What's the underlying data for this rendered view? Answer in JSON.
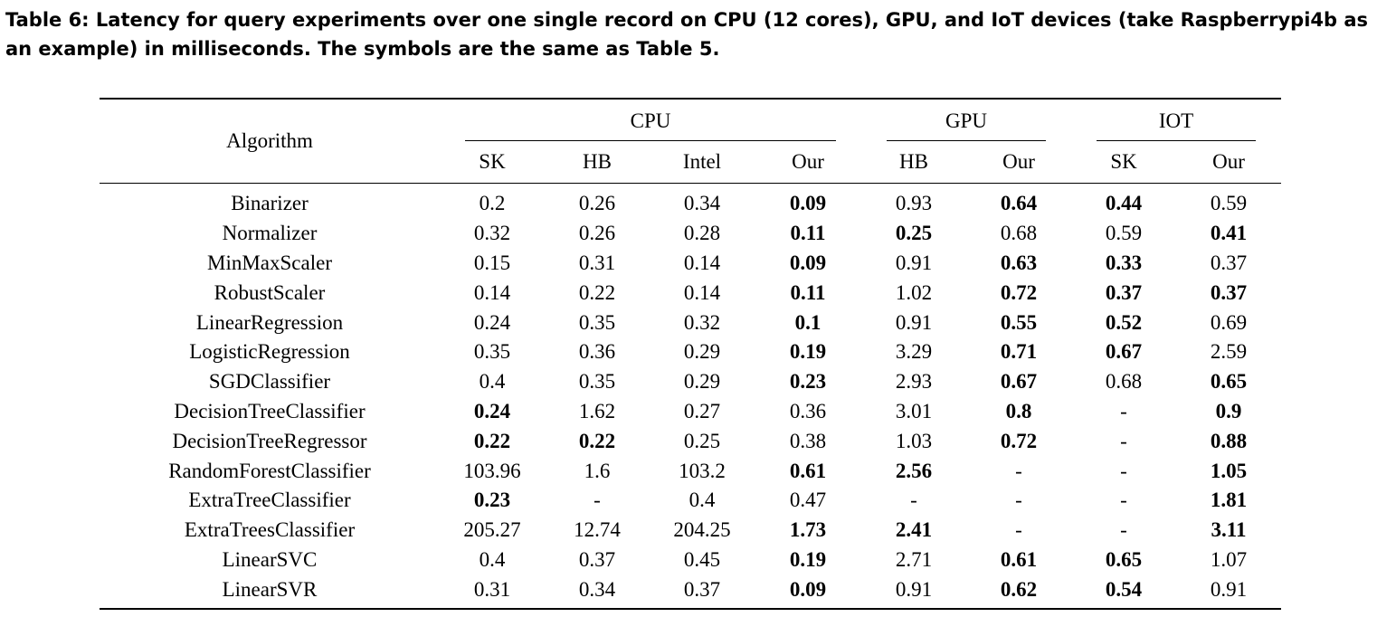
{
  "caption": "Table 6: Latency for query experiments over one single record on CPU (12 cores), GPU, and IoT devices (take Raspberrypi4b as an example) in milliseconds. The symbols are the same as Table 5.",
  "header": {
    "algorithm": "Algorithm",
    "groups": [
      "CPU",
      "GPU",
      "IOT"
    ],
    "columns": [
      "SK",
      "HB",
      "Intel",
      "Our",
      "HB",
      "Our",
      "SK",
      "Our"
    ]
  },
  "rows": [
    {
      "name": "Binarizer",
      "values": [
        "0.2",
        "0.26",
        "0.34",
        "0.09",
        "0.93",
        "0.64",
        "0.44",
        "0.59"
      ],
      "bold": [
        3,
        5,
        6
      ]
    },
    {
      "name": "Normalizer",
      "values": [
        "0.32",
        "0.26",
        "0.28",
        "0.11",
        "0.25",
        "0.68",
        "0.59",
        "0.41"
      ],
      "bold": [
        3,
        4,
        7
      ]
    },
    {
      "name": "MinMaxScaler",
      "values": [
        "0.15",
        "0.31",
        "0.14",
        "0.09",
        "0.91",
        "0.63",
        "0.33",
        "0.37"
      ],
      "bold": [
        3,
        5,
        6
      ]
    },
    {
      "name": "RobustScaler",
      "values": [
        "0.14",
        "0.22",
        "0.14",
        "0.11",
        "1.02",
        "0.72",
        "0.37",
        "0.37"
      ],
      "bold": [
        3,
        5,
        6,
        7
      ]
    },
    {
      "name": "LinearRegression",
      "values": [
        "0.24",
        "0.35",
        "0.32",
        "0.1",
        "0.91",
        "0.55",
        "0.52",
        "0.69"
      ],
      "bold": [
        3,
        5,
        6
      ]
    },
    {
      "name": "LogisticRegression",
      "values": [
        "0.35",
        "0.36",
        "0.29",
        "0.19",
        "3.29",
        "0.71",
        "0.67",
        "2.59"
      ],
      "bold": [
        3,
        5,
        6
      ]
    },
    {
      "name": "SGDClassifier",
      "values": [
        "0.4",
        "0.35",
        "0.29",
        "0.23",
        "2.93",
        "0.67",
        "0.68",
        "0.65"
      ],
      "bold": [
        3,
        5,
        7
      ]
    },
    {
      "name": "DecisionTreeClassifier",
      "values": [
        "0.24",
        "1.62",
        "0.27",
        "0.36",
        "3.01",
        "0.8",
        "-",
        "0.9"
      ],
      "bold": [
        0,
        5,
        7
      ]
    },
    {
      "name": "DecisionTreeRegressor",
      "values": [
        "0.22",
        "0.22",
        "0.25",
        "0.38",
        "1.03",
        "0.72",
        "-",
        "0.88"
      ],
      "bold": [
        0,
        1,
        5,
        7
      ]
    },
    {
      "name": "RandomForestClassifier",
      "values": [
        "103.96",
        "1.6",
        "103.2",
        "0.61",
        "2.56",
        "-",
        "-",
        "1.05"
      ],
      "bold": [
        3,
        4,
        7
      ]
    },
    {
      "name": "ExtraTreeClassifier",
      "values": [
        "0.23",
        "-",
        "0.4",
        "0.47",
        "-",
        "-",
        "-",
        "1.81"
      ],
      "bold": [
        0,
        7
      ]
    },
    {
      "name": "ExtraTreesClassifier",
      "values": [
        "205.27",
        "12.74",
        "204.25",
        "1.73",
        "2.41",
        "-",
        "-",
        "3.11"
      ],
      "bold": [
        3,
        4,
        7
      ]
    },
    {
      "name": "LinearSVC",
      "values": [
        "0.4",
        "0.37",
        "0.45",
        "0.19",
        "2.71",
        "0.61",
        "0.65",
        "1.07"
      ],
      "bold": [
        3,
        5,
        6
      ]
    },
    {
      "name": "LinearSVR",
      "values": [
        "0.31",
        "0.34",
        "0.37",
        "0.09",
        "0.91",
        "0.62",
        "0.54",
        "0.91"
      ],
      "bold": [
        3,
        5,
        6
      ]
    }
  ]
}
